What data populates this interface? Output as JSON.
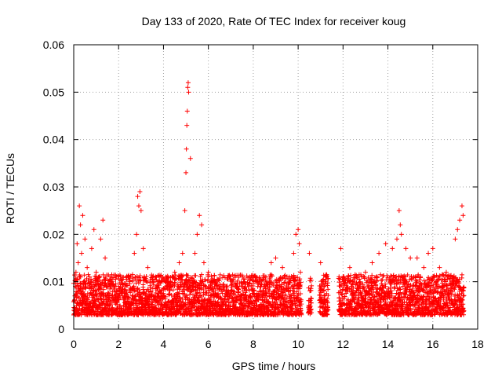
{
  "chart_data": {
    "type": "scatter",
    "title": "Day 133 of 2020, Rate Of TEC Index for receiver koug",
    "xlabel": "GPS time / hours",
    "ylabel": "ROTI / TECUs",
    "xlim": [
      0,
      18
    ],
    "ylim": [
      0,
      0.06
    ],
    "xticks": [
      0,
      2,
      4,
      6,
      8,
      10,
      12,
      14,
      16,
      18
    ],
    "xtick_labels": [
      "0",
      "2",
      "4",
      "6",
      "8",
      "10",
      "12",
      "14",
      "16",
      "18"
    ],
    "yticks": [
      0,
      0.01,
      0.02,
      0.03,
      0.04,
      0.05,
      0.06
    ],
    "ytick_labels": [
      "0",
      "0.01",
      "0.02",
      "0.03",
      "0.04",
      "0.05",
      "0.06"
    ],
    "grid": true,
    "marker": "+",
    "color": "#ff0000",
    "data_gaps_hours": [
      [
        10.15,
        10.45
      ],
      [
        10.6,
        10.95
      ],
      [
        11.35,
        11.8
      ]
    ],
    "series": [
      {
        "name": "ROTI",
        "x": [
          0.05,
          0.1,
          0.15,
          0.2,
          0.25,
          0.3,
          0.35,
          0.4,
          0.5,
          0.6,
          0.7,
          0.8,
          0.9,
          1.0,
          1.1,
          1.2,
          1.3,
          1.4,
          1.5,
          1.7,
          1.9,
          2.1,
          2.3,
          2.5,
          2.7,
          2.8,
          2.85,
          2.9,
          2.95,
          3.0,
          3.1,
          3.3,
          3.5,
          3.7,
          3.9,
          4.1,
          4.3,
          4.5,
          4.7,
          4.85,
          4.95,
          5.0,
          5.02,
          5.04,
          5.06,
          5.08,
          5.1,
          5.12,
          5.2,
          5.4,
          5.5,
          5.6,
          5.7,
          5.8,
          6.0,
          6.2,
          6.5,
          6.8,
          7.0,
          7.3,
          7.6,
          8.0,
          8.3,
          8.6,
          8.8,
          9.0,
          9.3,
          9.6,
          9.8,
          9.9,
          10.0,
          10.05,
          10.1,
          10.5,
          11.0,
          11.2,
          11.9,
          12.0,
          12.3,
          12.6,
          13.0,
          13.3,
          13.6,
          13.9,
          14.2,
          14.4,
          14.5,
          14.55,
          14.6,
          14.8,
          15.0,
          15.3,
          15.6,
          15.8,
          16.0,
          16.3,
          16.6,
          16.9,
          17.0,
          17.1,
          17.2,
          17.3,
          17.35
        ],
        "y": [
          0.007,
          0.012,
          0.018,
          0.014,
          0.026,
          0.022,
          0.016,
          0.024,
          0.019,
          0.013,
          0.011,
          0.017,
          0.021,
          0.012,
          0.009,
          0.019,
          0.023,
          0.015,
          0.009,
          0.01,
          0.008,
          0.008,
          0.009,
          0.01,
          0.016,
          0.02,
          0.028,
          0.026,
          0.029,
          0.025,
          0.017,
          0.013,
          0.01,
          0.009,
          0.01,
          0.011,
          0.009,
          0.012,
          0.014,
          0.016,
          0.025,
          0.033,
          0.038,
          0.043,
          0.046,
          0.051,
          0.052,
          0.05,
          0.036,
          0.016,
          0.02,
          0.024,
          0.022,
          0.014,
          0.012,
          0.01,
          0.009,
          0.009,
          0.008,
          0.009,
          0.01,
          0.011,
          0.009,
          0.01,
          0.014,
          0.015,
          0.013,
          0.011,
          0.016,
          0.02,
          0.021,
          0.018,
          0.012,
          0.016,
          0.014,
          0.01,
          0.017,
          0.01,
          0.013,
          0.011,
          0.012,
          0.014,
          0.016,
          0.018,
          0.017,
          0.019,
          0.025,
          0.022,
          0.02,
          0.017,
          0.015,
          0.015,
          0.013,
          0.016,
          0.017,
          0.013,
          0.012,
          0.011,
          0.019,
          0.021,
          0.023,
          0.026,
          0.024
        ]
      }
    ]
  }
}
